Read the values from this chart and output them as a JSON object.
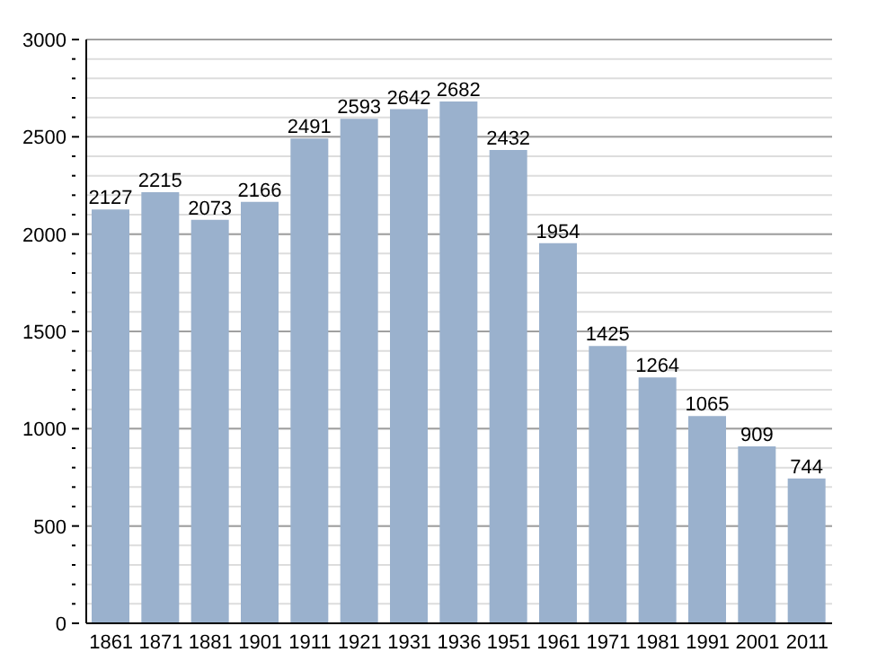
{
  "chart_data": {
    "type": "bar",
    "categories": [
      "1861",
      "1871",
      "1881",
      "1901",
      "1911",
      "1921",
      "1931",
      "1936",
      "1951",
      "1961",
      "1971",
      "1981",
      "1991",
      "2001",
      "2011"
    ],
    "values": [
      2127,
      2215,
      2073,
      2166,
      2491,
      2593,
      2642,
      2682,
      2432,
      1954,
      1425,
      1264,
      1065,
      909,
      744
    ],
    "color": "#9ab1cd",
    "data_labels": true,
    "grid": "y",
    "ylim": [
      0,
      3000
    ],
    "yticks": [
      0,
      {
        "value": 100,
        "label": null
      },
      {
        "value": 200,
        "label": null
      },
      {
        "value": 300,
        "label": null
      },
      {
        "value": 400,
        "label": null
      },
      500,
      {
        "value": 600,
        "label": null
      },
      {
        "value": 700,
        "label": null
      },
      {
        "value": 800,
        "label": null
      },
      {
        "value": 900,
        "label": null
      },
      1000,
      {
        "value": 1100,
        "label": null
      },
      {
        "value": 1200,
        "label": null
      },
      {
        "value": 1300,
        "label": null
      },
      {
        "value": 1400,
        "label": null
      },
      1500,
      {
        "value": 1600,
        "label": null
      },
      {
        "value": 1700,
        "label": null
      },
      {
        "value": 1800,
        "label": null
      },
      {
        "value": 1900,
        "label": null
      },
      2000,
      {
        "value": 2100,
        "label": null
      },
      {
        "value": 2200,
        "label": null
      },
      {
        "value": 2300,
        "label": null
      },
      {
        "value": 2400,
        "label": null
      },
      2500,
      {
        "value": 2600,
        "label": null
      },
      {
        "value": 2700,
        "label": null
      },
      {
        "value": 2800,
        "label": null
      },
      {
        "value": 2900,
        "label": null
      },
      3000
    ]
  }
}
